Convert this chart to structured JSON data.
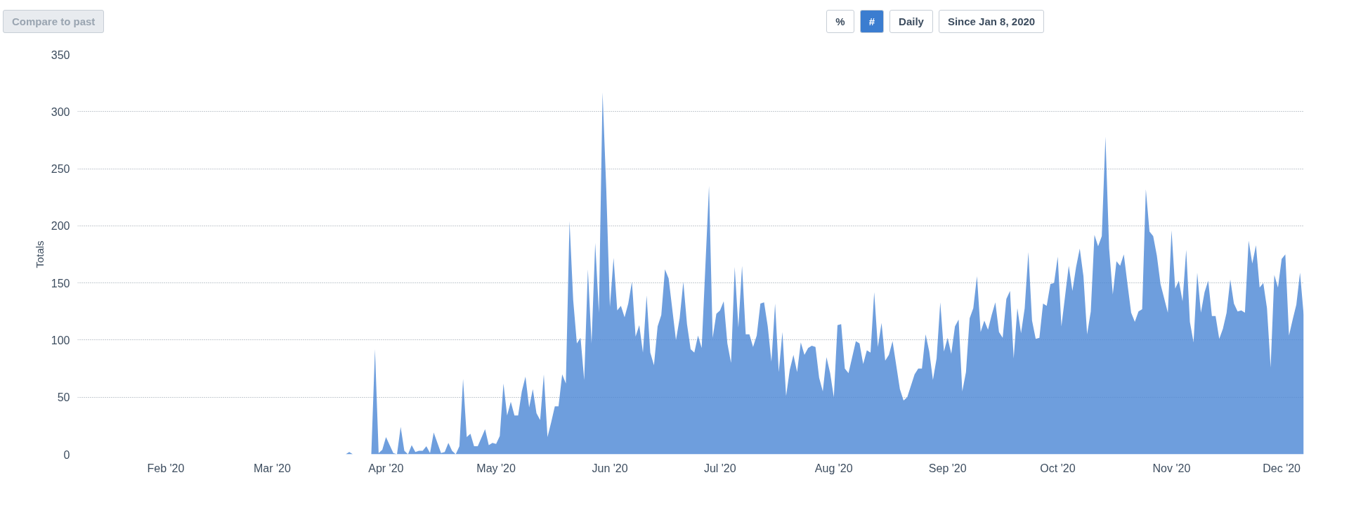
{
  "chart_data": {
    "type": "area",
    "ylabel": "Totals",
    "annotations": [
      "Compare to past",
      "%",
      "#",
      "Daily",
      "Since Jan 8, 2020"
    ],
    "xlim": [
      "2020-01-08",
      "2020-12-07"
    ],
    "xticks": [
      {
        "value": "2020-02-01",
        "label": "Feb '20"
      },
      {
        "value": "2020-03-01",
        "label": "Mar '20"
      },
      {
        "value": "2020-04-01",
        "label": "Apr '20"
      },
      {
        "value": "2020-05-01",
        "label": "May '20"
      },
      {
        "value": "2020-06-01",
        "label": "Jun '20"
      },
      {
        "value": "2020-07-01",
        "label": "Jul '20"
      },
      {
        "value": "2020-08-01",
        "label": "Aug '20"
      },
      {
        "value": "2020-09-01",
        "label": "Sep '20"
      },
      {
        "value": "2020-10-01",
        "label": "Oct '20"
      },
      {
        "value": "2020-11-01",
        "label": "Nov '20"
      },
      {
        "value": "2020-12-01",
        "label": "Dec '20"
      }
    ],
    "ylim": [
      0,
      350
    ],
    "yticks": [
      0,
      50,
      100,
      150,
      200,
      250,
      300,
      350
    ],
    "grid": "y",
    "x": [
      "2020-01-08",
      "2020-03-21",
      "2020-03-22",
      "2020-03-23",
      "2020-03-28",
      "2020-03-29",
      "2020-03-30",
      "2020-03-31",
      "2020-04-01",
      "2020-04-03",
      "2020-04-04",
      "2020-04-05",
      "2020-04-06",
      "2020-04-07",
      "2020-04-08",
      "2020-04-09",
      "2020-04-10",
      "2020-04-11",
      "2020-04-12",
      "2020-04-13",
      "2020-04-14",
      "2020-04-16",
      "2020-04-17",
      "2020-04-18",
      "2020-04-19",
      "2020-04-20",
      "2020-04-21",
      "2020-04-22",
      "2020-04-23",
      "2020-04-24",
      "2020-04-25",
      "2020-04-26",
      "2020-04-28",
      "2020-04-29",
      "2020-04-30",
      "2020-05-01",
      "2020-05-02",
      "2020-05-03",
      "2020-05-04",
      "2020-05-05",
      "2020-05-06",
      "2020-05-07",
      "2020-05-08",
      "2020-05-09",
      "2020-05-10",
      "2020-05-11",
      "2020-05-12",
      "2020-05-13",
      "2020-05-14",
      "2020-05-15",
      "2020-05-16",
      "2020-05-17",
      "2020-05-18",
      "2020-05-19",
      "2020-05-20",
      "2020-05-21",
      "2020-05-22",
      "2020-05-23",
      "2020-05-24",
      "2020-05-25",
      "2020-05-26",
      "2020-05-27",
      "2020-05-28",
      "2020-05-29",
      "2020-05-30",
      "2020-05-31",
      "2020-06-01",
      "2020-06-02",
      "2020-06-03",
      "2020-06-04",
      "2020-06-05",
      "2020-06-06",
      "2020-06-07",
      "2020-06-08",
      "2020-06-09",
      "2020-06-10",
      "2020-06-11",
      "2020-06-12",
      "2020-06-13",
      "2020-06-14",
      "2020-06-15",
      "2020-06-16",
      "2020-06-17",
      "2020-06-19",
      "2020-06-20",
      "2020-06-21",
      "2020-06-22",
      "2020-06-23",
      "2020-06-24",
      "2020-06-25",
      "2020-06-26",
      "2020-06-28",
      "2020-06-29",
      "2020-06-30",
      "2020-07-01",
      "2020-07-02",
      "2020-07-03",
      "2020-07-04",
      "2020-07-05",
      "2020-07-06",
      "2020-07-07",
      "2020-07-08",
      "2020-07-09",
      "2020-07-10",
      "2020-07-11",
      "2020-07-12",
      "2020-07-13",
      "2020-07-14",
      "2020-07-15",
      "2020-07-16",
      "2020-07-17",
      "2020-07-18",
      "2020-07-19",
      "2020-07-20",
      "2020-07-21",
      "2020-07-22",
      "2020-07-23",
      "2020-07-24",
      "2020-07-25",
      "2020-07-26",
      "2020-07-27",
      "2020-07-28",
      "2020-07-29",
      "2020-07-30",
      "2020-07-31",
      "2020-08-01",
      "2020-08-02",
      "2020-08-03",
      "2020-08-04",
      "2020-08-05",
      "2020-08-07",
      "2020-08-08",
      "2020-08-09",
      "2020-08-10",
      "2020-08-11",
      "2020-08-12",
      "2020-08-13",
      "2020-08-14",
      "2020-08-15",
      "2020-08-16",
      "2020-08-17",
      "2020-08-19",
      "2020-08-20",
      "2020-08-21",
      "2020-08-23",
      "2020-08-24",
      "2020-08-25",
      "2020-08-26",
      "2020-08-27",
      "2020-08-28",
      "2020-08-29",
      "2020-08-30",
      "2020-08-31",
      "2020-09-01",
      "2020-09-02",
      "2020-09-03",
      "2020-09-04",
      "2020-09-05",
      "2020-09-06",
      "2020-09-07",
      "2020-09-08",
      "2020-09-09",
      "2020-09-10",
      "2020-09-11",
      "2020-09-12",
      "2020-09-13",
      "2020-09-14",
      "2020-09-15",
      "2020-09-16",
      "2020-09-17",
      "2020-09-18",
      "2020-09-19",
      "2020-09-20",
      "2020-09-21",
      "2020-09-22",
      "2020-09-23",
      "2020-09-24",
      "2020-09-25",
      "2020-09-26",
      "2020-09-27",
      "2020-09-28",
      "2020-09-29",
      "2020-09-30",
      "2020-10-01",
      "2020-10-02",
      "2020-10-04",
      "2020-10-05",
      "2020-10-06",
      "2020-10-07",
      "2020-10-08",
      "2020-10-09",
      "2020-10-10",
      "2020-10-11",
      "2020-10-12",
      "2020-10-13",
      "2020-10-14",
      "2020-10-15",
      "2020-10-16",
      "2020-10-17",
      "2020-10-18",
      "2020-10-19",
      "2020-10-20",
      "2020-10-21",
      "2020-10-22",
      "2020-10-23",
      "2020-10-24",
      "2020-10-25",
      "2020-10-26",
      "2020-10-27",
      "2020-10-28",
      "2020-10-29",
      "2020-10-31",
      "2020-11-01",
      "2020-11-02",
      "2020-11-03",
      "2020-11-04",
      "2020-11-05",
      "2020-11-06",
      "2020-11-07",
      "2020-11-08",
      "2020-11-09",
      "2020-11-10",
      "2020-11-11",
      "2020-11-12",
      "2020-11-13",
      "2020-11-14",
      "2020-11-15",
      "2020-11-16",
      "2020-11-17",
      "2020-11-18",
      "2020-11-19",
      "2020-11-20",
      "2020-11-21",
      "2020-11-22",
      "2020-11-23",
      "2020-11-24",
      "2020-11-25",
      "2020-11-26",
      "2020-11-27",
      "2020-11-28",
      "2020-11-29",
      "2020-11-30",
      "2020-12-01",
      "2020-12-02",
      "2020-12-03",
      "2020-12-04",
      "2020-12-05",
      "2020-12-06",
      "2020-12-07"
    ],
    "series": [
      {
        "color": "#4a86d4",
        "values": [
          0,
          0,
          2,
          0,
          0,
          92,
          1,
          4,
          15,
          1,
          0,
          24,
          3,
          0,
          8,
          2,
          3,
          3,
          7,
          1,
          19,
          1,
          2,
          10,
          3,
          0,
          7,
          66,
          15,
          18,
          7,
          7,
          22,
          8,
          10,
          9,
          16,
          62,
          34,
          46,
          34,
          34,
          55,
          68,
          41,
          57,
          36,
          30,
          70,
          15,
          28,
          42,
          42,
          70,
          62,
          204,
          135,
          97,
          102,
          65,
          162,
          97,
          185,
          124,
          317,
          233,
          129,
          172,
          126,
          130,
          120,
          132,
          151,
          103,
          113,
          89,
          139,
          89,
          78,
          112,
          122,
          162,
          154,
          100,
          119,
          151,
          114,
          92,
          89,
          104,
          93,
          235,
          102,
          123,
          126,
          134,
          97,
          80,
          164,
          111,
          165,
          105,
          105,
          94,
          104,
          132,
          133,
          112,
          81,
          132,
          72,
          107,
          51,
          74,
          87,
          72,
          98,
          87,
          93,
          95,
          94,
          67,
          55,
          85,
          71,
          50,
          113,
          114,
          75,
          71,
          99,
          97,
          79,
          91,
          89,
          142,
          94,
          115,
          82,
          87,
          99,
          57,
          47,
          50,
          70,
          75,
          75,
          105,
          90,
          65,
          84,
          133,
          90,
          102,
          88,
          112,
          118,
          55,
          72,
          119,
          128,
          156,
          107,
          117,
          109,
          122,
          133,
          107,
          102,
          136,
          143,
          84,
          128,
          106,
          128,
          177,
          117,
          101,
          102,
          132,
          130,
          149,
          150,
          173,
          112,
          165,
          143,
          164,
          180,
          156,
          105,
          125,
          192,
          182,
          191,
          278,
          180,
          140,
          169,
          165,
          175,
          149,
          124,
          116,
          125,
          127,
          232,
          195,
          191,
          174,
          149,
          124,
          196,
          145,
          152,
          134,
          179,
          116,
          98,
          159,
          124,
          142,
          152,
          121,
          121,
          101,
          110,
          124,
          153,
          132,
          125,
          126,
          124,
          187,
          167,
          183,
          146,
          150,
          128,
          76,
          157,
          146,
          171,
          175,
          104,
          118,
          131,
          159,
          122
        ]
      }
    ]
  }
}
